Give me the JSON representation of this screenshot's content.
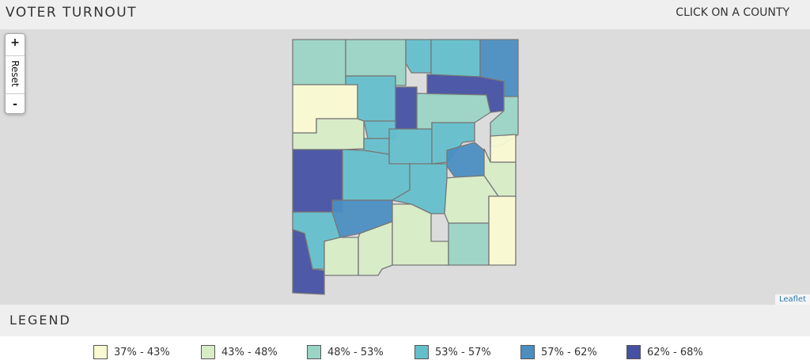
{
  "header": {
    "title": "VOTER TURNOUT",
    "action": "CLICK ON A COUNTY"
  },
  "map": {
    "controls": {
      "zoom_in": "+",
      "reset": "Reset",
      "zoom_out": "-"
    },
    "attribution": "Leaflet"
  },
  "legend": {
    "title": "LEGEND",
    "items": [
      {
        "label": "37% - 43%",
        "color": "#f9f9d2"
      },
      {
        "label": "43% - 48%",
        "color": "#d7ecc6"
      },
      {
        "label": "48% - 53%",
        "color": "#9ad4c5"
      },
      {
        "label": "53% - 57%",
        "color": "#63bfcb"
      },
      {
        "label": "57% - 62%",
        "color": "#4b8ec2"
      },
      {
        "label": "62% - 68%",
        "color": "#4651a3"
      }
    ]
  }
}
